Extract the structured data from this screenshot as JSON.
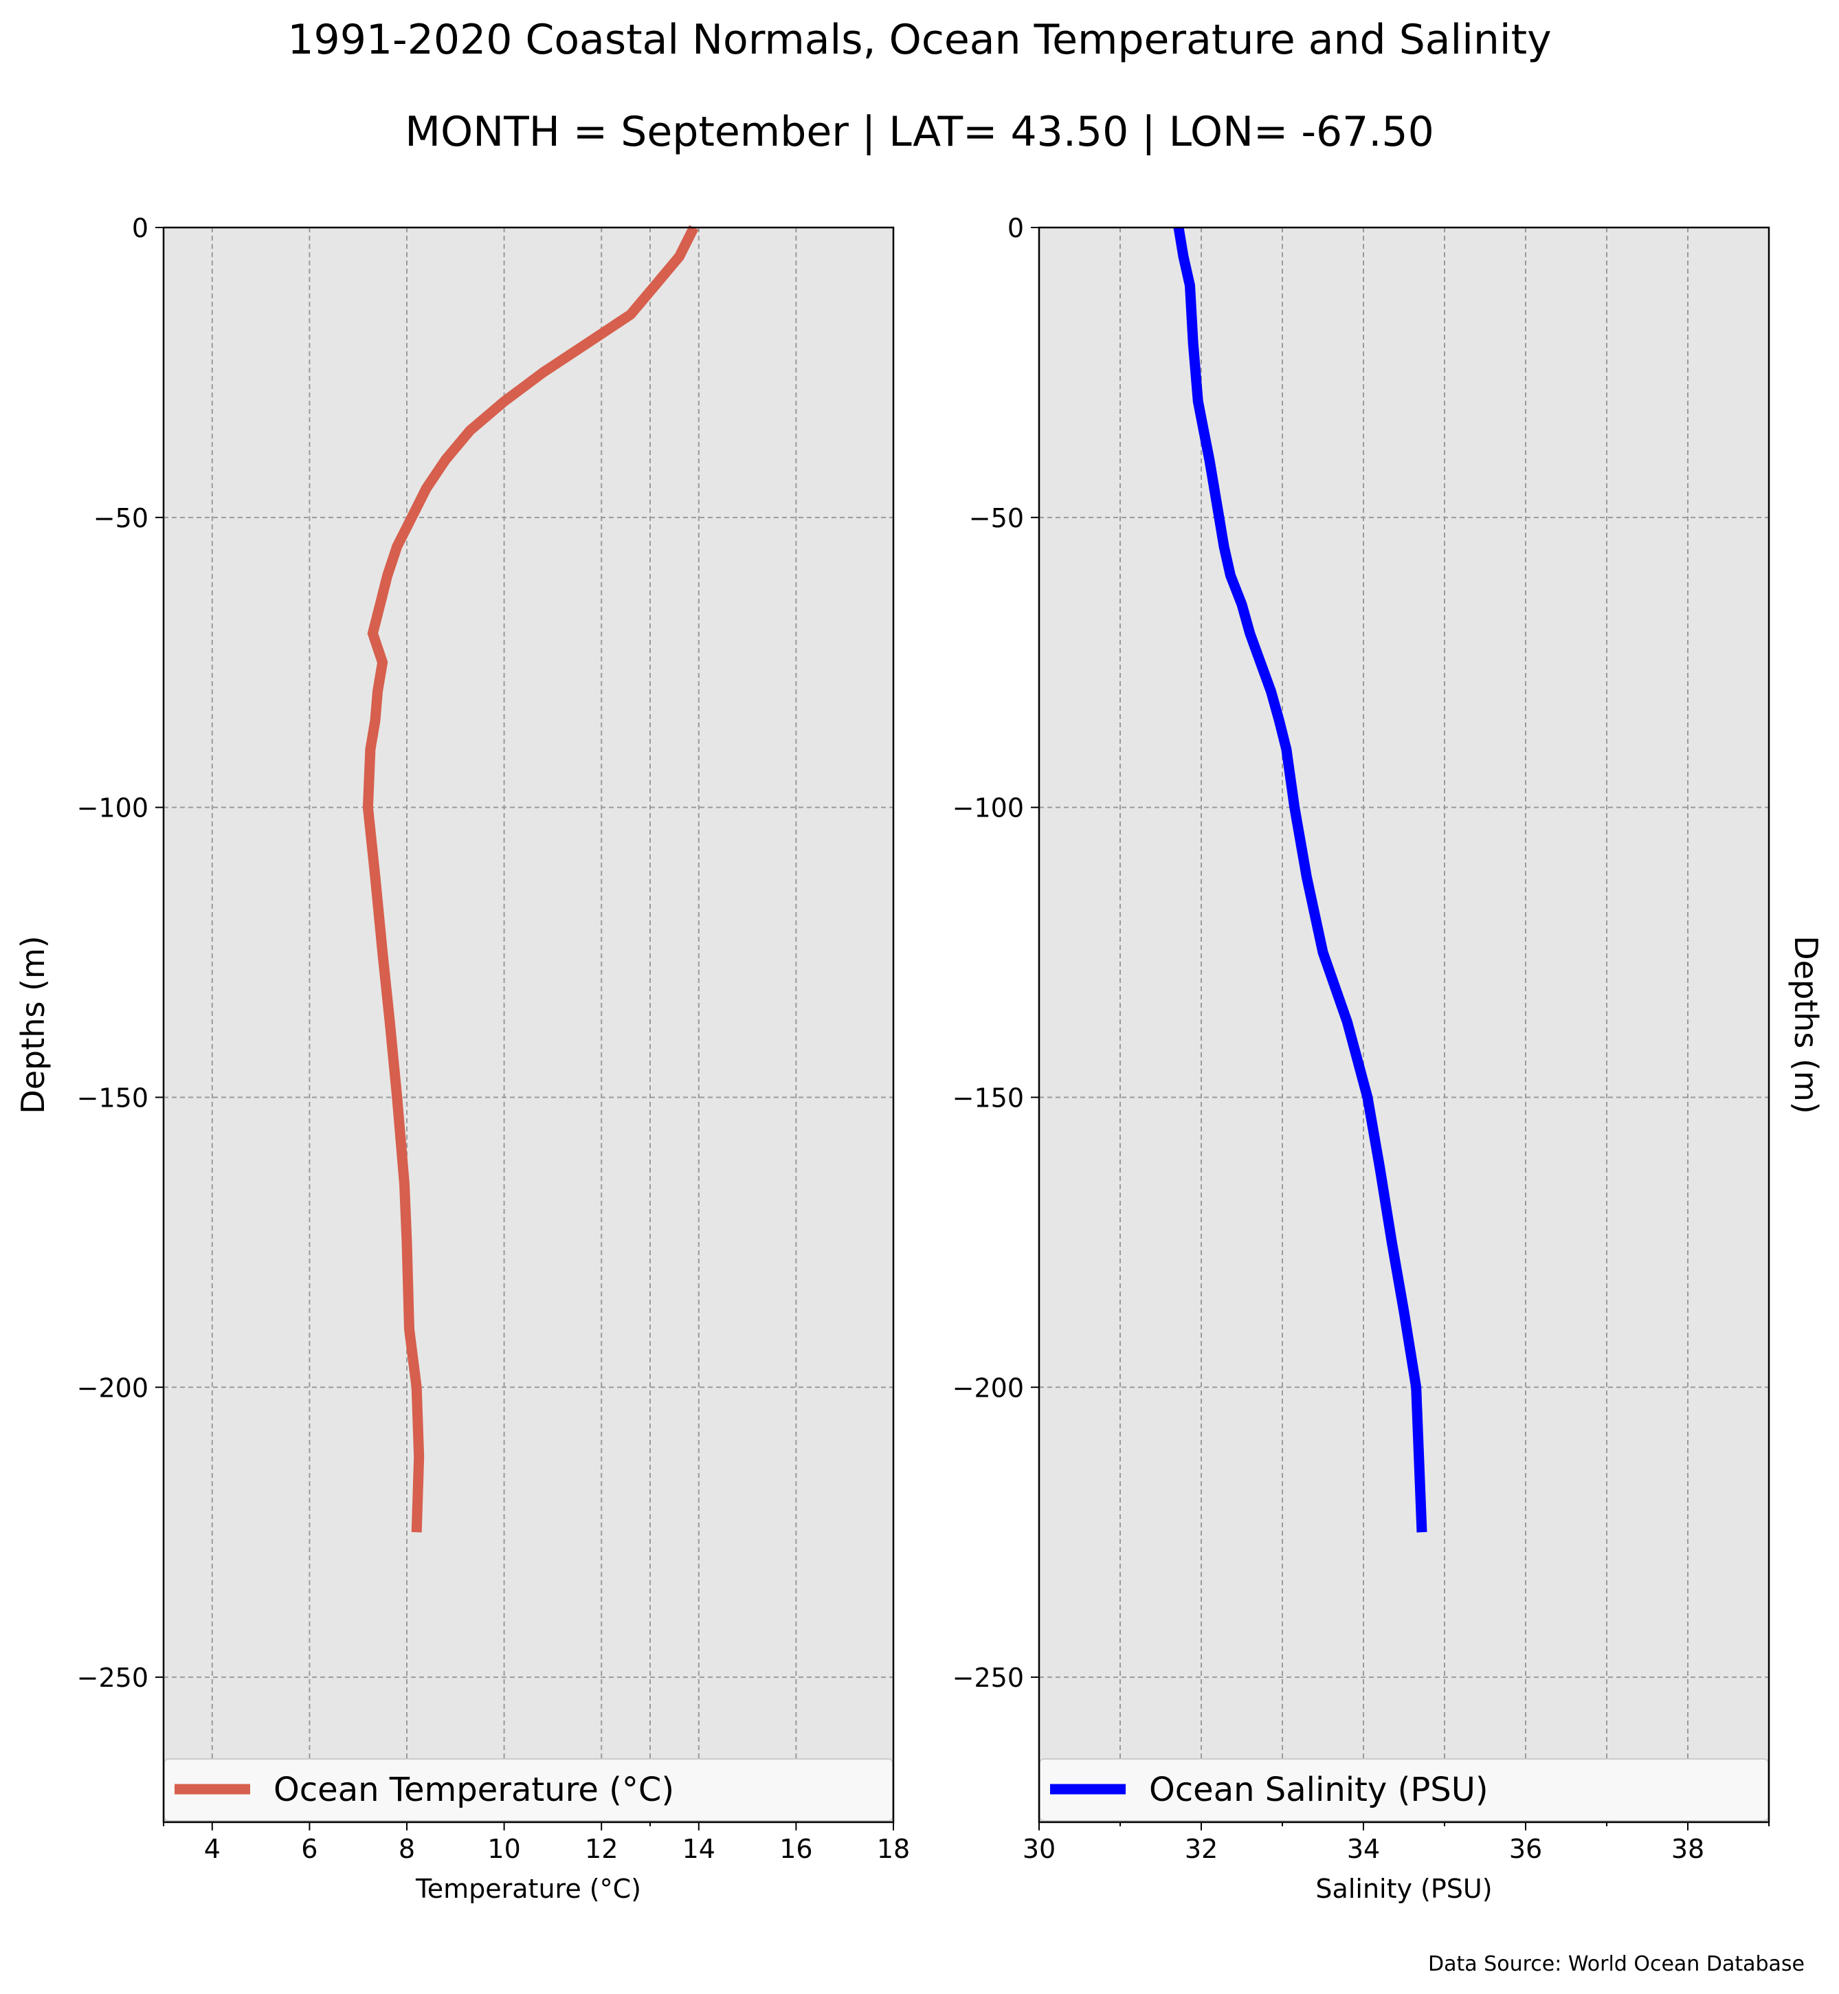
{
  "title": "1991-2020 Coastal Normals, Ocean Temperature and Salinity",
  "subtitle": "MONTH = September | LAT= 43.50 | LON= -67.50",
  "footer": "Data Source: World Ocean Database",
  "chart_data": [
    {
      "type": "line",
      "xlabel": "Temperature (°C)",
      "ylabel": "Depths (m)",
      "xlim": [
        3,
        18
      ],
      "ylim": [
        -275,
        0
      ],
      "xticks": [
        4,
        6,
        8,
        10,
        12,
        14,
        16,
        18
      ],
      "xtick_labels": [
        "4",
        "6",
        "8",
        "10",
        "12",
        "14",
        "16",
        "18"
      ],
      "xminor": [
        3,
        13
      ],
      "yticks": [
        0,
        -50,
        -100,
        -150,
        -200,
        -250
      ],
      "ytick_labels": [
        "0",
        "−50",
        "−100",
        "−150",
        "−200",
        "−250"
      ],
      "grid": true,
      "legend_position": "bottom",
      "ylabel_side": "left",
      "color": "#d65f4d",
      "background": "#e6e6e6",
      "series": [
        {
          "name": "Ocean Temperature (°C)",
          "x": [
            13.9,
            13.6,
            13.1,
            12.6,
            11.7,
            10.8,
            10.0,
            9.3,
            8.8,
            8.4,
            8.1,
            7.8,
            7.6,
            7.45,
            7.3,
            7.5,
            7.4,
            7.35,
            7.25,
            7.2,
            7.35,
            7.5,
            7.65,
            7.8,
            7.95,
            8.0,
            8.05,
            8.2,
            8.25,
            8.2
          ],
          "y": [
            0,
            -5,
            -10,
            -15,
            -20,
            -25,
            -30,
            -35,
            -40,
            -45,
            -50,
            -55,
            -60,
            -65,
            -70,
            -75,
            -80,
            -85,
            -90,
            -100,
            -112,
            -125,
            -137,
            -150,
            -165,
            -175,
            -190,
            -200,
            -212,
            -225
          ]
        }
      ]
    },
    {
      "type": "line",
      "xlabel": "Salinity (PSU)",
      "ylabel": "Depths (m)",
      "xlim": [
        30,
        39
      ],
      "ylim": [
        -275,
        0
      ],
      "xticks": [
        30,
        32,
        34,
        36,
        38
      ],
      "xtick_labels": [
        "30",
        "32",
        "34",
        "36",
        "38"
      ],
      "xminor": [
        31,
        33,
        35,
        37,
        39
      ],
      "yticks": [
        0,
        -50,
        -100,
        -150,
        -200,
        -250
      ],
      "ytick_labels": [
        "0",
        "−50",
        "−100",
        "−150",
        "−200",
        "−250"
      ],
      "grid": true,
      "legend_position": "bottom",
      "ylabel_side": "right",
      "color": "#0000ff",
      "background": "#e6e6e6",
      "series": [
        {
          "name": "Ocean Salinity (PSU)",
          "x": [
            31.72,
            31.78,
            31.86,
            31.9,
            31.96,
            32.03,
            32.1,
            32.16,
            32.22,
            32.28,
            32.36,
            32.5,
            32.6,
            32.73,
            32.86,
            32.96,
            33.05,
            33.15,
            33.3,
            33.5,
            33.8,
            34.05,
            34.2,
            34.35,
            34.5,
            34.65,
            34.72
          ],
          "y": [
            0,
            -5,
            -10,
            -20,
            -30,
            -35,
            -40,
            -45,
            -50,
            -55,
            -60,
            -65,
            -70,
            -75,
            -80,
            -85,
            -90,
            -100,
            -112,
            -125,
            -137,
            -150,
            -162,
            -175,
            -187,
            -200,
            -225
          ]
        }
      ]
    }
  ]
}
